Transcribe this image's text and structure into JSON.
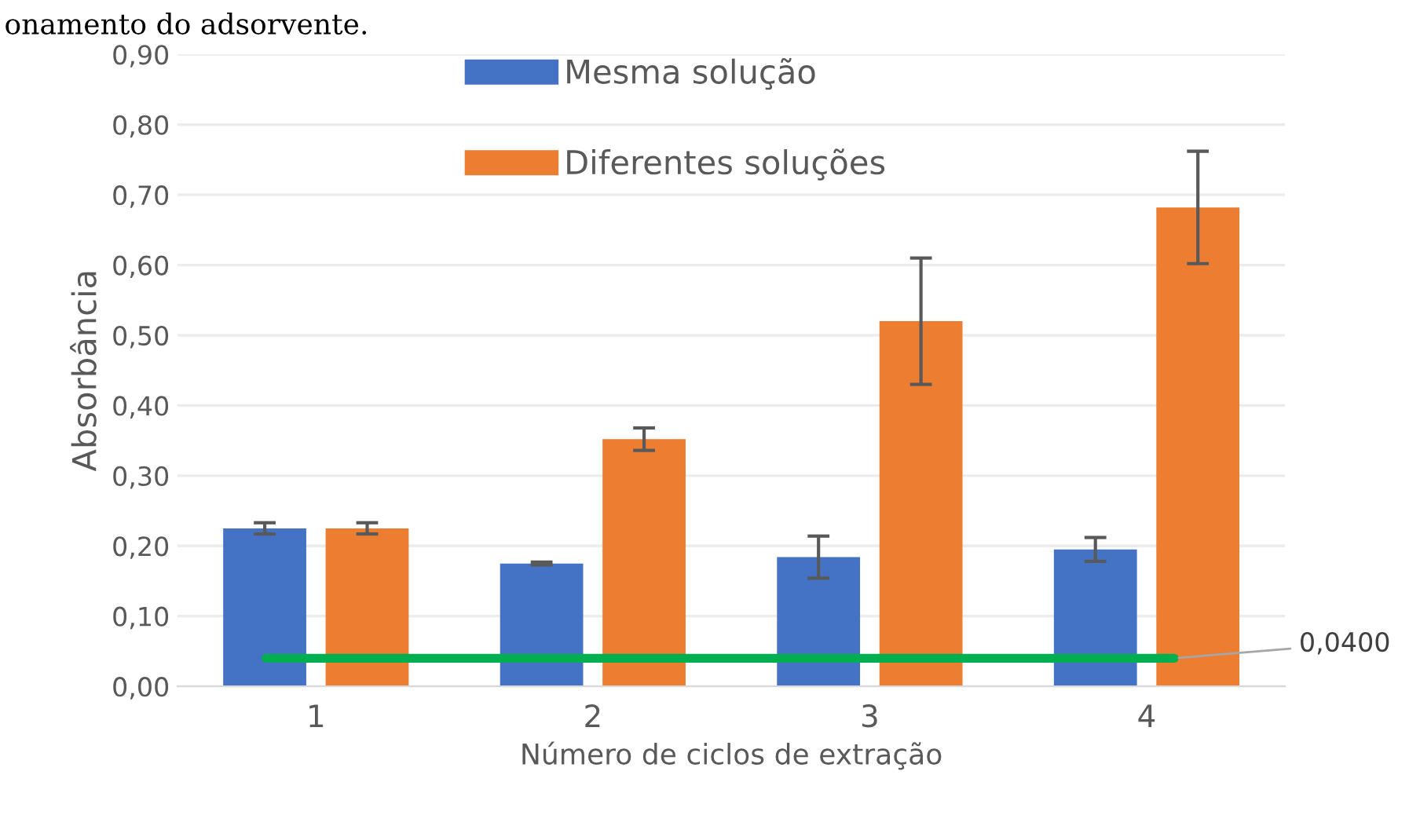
{
  "chart_data": {
    "type": "bar",
    "xlabel": "Número de ciclos de extração",
    "ylabel": "Absorbância",
    "categories": [
      "1",
      "2",
      "3",
      "4"
    ],
    "series": [
      {
        "name": "Mesma solução",
        "color": "#4472c4",
        "values": [
          0.225,
          0.175,
          0.184,
          0.195
        ],
        "errors": [
          0.008,
          0.002,
          0.03,
          0.017
        ]
      },
      {
        "name": "Diferentes soluções",
        "color": "#ed7d31",
        "values": [
          0.225,
          0.352,
          0.52,
          0.682
        ],
        "errors": [
          0.008,
          0.016,
          0.09,
          0.08
        ]
      }
    ],
    "ylim": [
      0,
      0.9
    ],
    "yticks": [
      {
        "value": 0,
        "label": "0,00"
      },
      {
        "value": 0.1,
        "label": "0,10"
      },
      {
        "value": 0.2,
        "label": "0,20"
      },
      {
        "value": 0.3,
        "label": "0,30"
      },
      {
        "value": 0.4,
        "label": "0,40"
      },
      {
        "value": 0.5,
        "label": "0,50"
      },
      {
        "value": 0.6,
        "label": "0,60"
      },
      {
        "value": 0.7,
        "label": "0,70"
      },
      {
        "value": 0.8,
        "label": "0,80"
      },
      {
        "value": 0.9,
        "label": "0,90"
      }
    ],
    "ref_lines": [
      {
        "axis": "y",
        "value": 0.04,
        "label": "0,0400",
        "color": "#00b050",
        "line_style": "solid"
      }
    ],
    "annotations": [
      "onamento do adsorvente."
    ],
    "grid": "y",
    "legend": "top"
  }
}
